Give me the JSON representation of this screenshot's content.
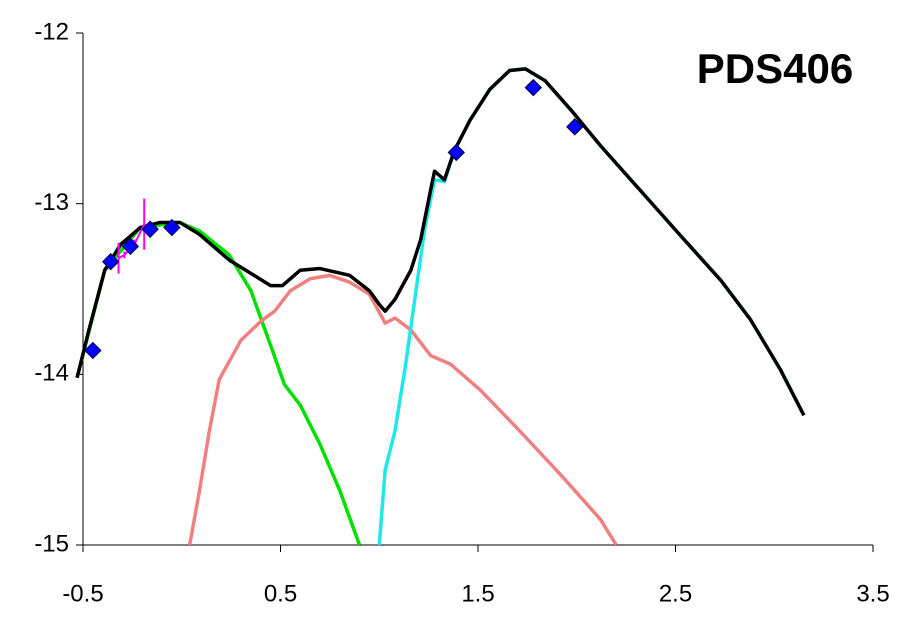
{
  "chart_data": {
    "type": "line",
    "annotation": "PDS406",
    "xlim": [
      -0.5,
      3.5
    ],
    "xticks": [
      -0.5,
      0.5,
      1.5,
      2.5,
      3.5
    ],
    "ylim": [
      -15,
      -12
    ],
    "yticks": [
      -12,
      -13,
      -14,
      -15
    ],
    "grid": false,
    "series": [
      {
        "color": "#00e000",
        "marker": "none",
        "x": [
          -0.53,
          -0.39,
          -0.21,
          -0.01,
          0.09,
          0.24,
          0.35,
          0.45,
          0.52,
          0.6,
          0.7,
          0.8,
          0.9
        ],
        "values": [
          -14.02,
          -13.39,
          -13.14,
          -13.11,
          -13.16,
          -13.3,
          -13.51,
          -13.83,
          -14.06,
          -14.18,
          -14.41,
          -14.68,
          -15.0
        ]
      },
      {
        "color": "#f08080",
        "marker": "none",
        "x": [
          0.04,
          0.09,
          0.14,
          0.19,
          0.3,
          0.4,
          0.47,
          0.55,
          0.65,
          0.75,
          0.85,
          0.95,
          1.03,
          1.08,
          1.16,
          1.26,
          1.36,
          1.51,
          1.71,
          1.92,
          2.12,
          2.2
        ],
        "values": [
          -15.0,
          -14.68,
          -14.33,
          -14.03,
          -13.8,
          -13.69,
          -13.63,
          -13.51,
          -13.44,
          -13.42,
          -13.46,
          -13.53,
          -13.7,
          -13.67,
          -13.74,
          -13.89,
          -13.94,
          -14.09,
          -14.33,
          -14.59,
          -14.85,
          -15.0
        ]
      },
      {
        "color": "#20e8e8",
        "marker": "none",
        "x": [
          1.0,
          1.03,
          1.08,
          1.13,
          1.18,
          1.23,
          1.28,
          1.33,
          1.38,
          1.46,
          1.56,
          1.66,
          1.74,
          1.84,
          1.97,
          2.12,
          2.32,
          2.52,
          2.73,
          2.88,
          3.03,
          3.15
        ],
        "values": [
          -15.0,
          -14.56,
          -14.33,
          -13.97,
          -13.56,
          -13.15,
          -12.86,
          -12.87,
          -12.69,
          -12.51,
          -12.33,
          -12.22,
          -12.21,
          -12.28,
          -12.45,
          -12.66,
          -12.92,
          -13.18,
          -13.45,
          -13.68,
          -13.97,
          -14.24
        ]
      },
      {
        "color": "#000000",
        "marker": "none",
        "x": [
          -0.53,
          -0.47,
          -0.39,
          -0.31,
          -0.21,
          -0.11,
          -0.01,
          0.09,
          0.24,
          0.45,
          0.51,
          0.6,
          0.7,
          0.85,
          0.95,
          1.0,
          1.03,
          1.08,
          1.16,
          1.21,
          1.26,
          1.28,
          1.33,
          1.38,
          1.46,
          1.56,
          1.66,
          1.74,
          1.84,
          1.97,
          2.12,
          2.32,
          2.52,
          2.73,
          2.88,
          3.03,
          3.15
        ],
        "values": [
          -14.02,
          -13.74,
          -13.39,
          -13.24,
          -13.14,
          -13.11,
          -13.11,
          -13.18,
          -13.33,
          -13.48,
          -13.48,
          -13.39,
          -13.38,
          -13.42,
          -13.51,
          -13.59,
          -13.63,
          -13.56,
          -13.39,
          -13.21,
          -12.92,
          -12.81,
          -12.86,
          -12.69,
          -12.51,
          -12.33,
          -12.22,
          -12.21,
          -12.28,
          -12.45,
          -12.66,
          -12.92,
          -13.18,
          -13.45,
          -13.68,
          -13.97,
          -14.24
        ]
      },
      {
        "color": "#ff00ff",
        "marker": "errorbar",
        "x": [
          -0.32,
          -0.29,
          -0.24,
          -0.19
        ],
        "values": [
          -13.32,
          -13.3,
          -13.24,
          -13.12
        ],
        "errors": [
          0.09,
          0.02,
          0.03,
          0.15
        ]
      },
      {
        "color": "#0000ff",
        "marker": "diamond",
        "x": [
          -0.45,
          -0.36,
          -0.26,
          -0.16,
          -0.05,
          1.39,
          1.78,
          1.99
        ],
        "values": [
          -13.86,
          -13.34,
          -13.25,
          -13.15,
          -13.14,
          -12.7,
          -12.32,
          -12.55
        ]
      }
    ]
  }
}
